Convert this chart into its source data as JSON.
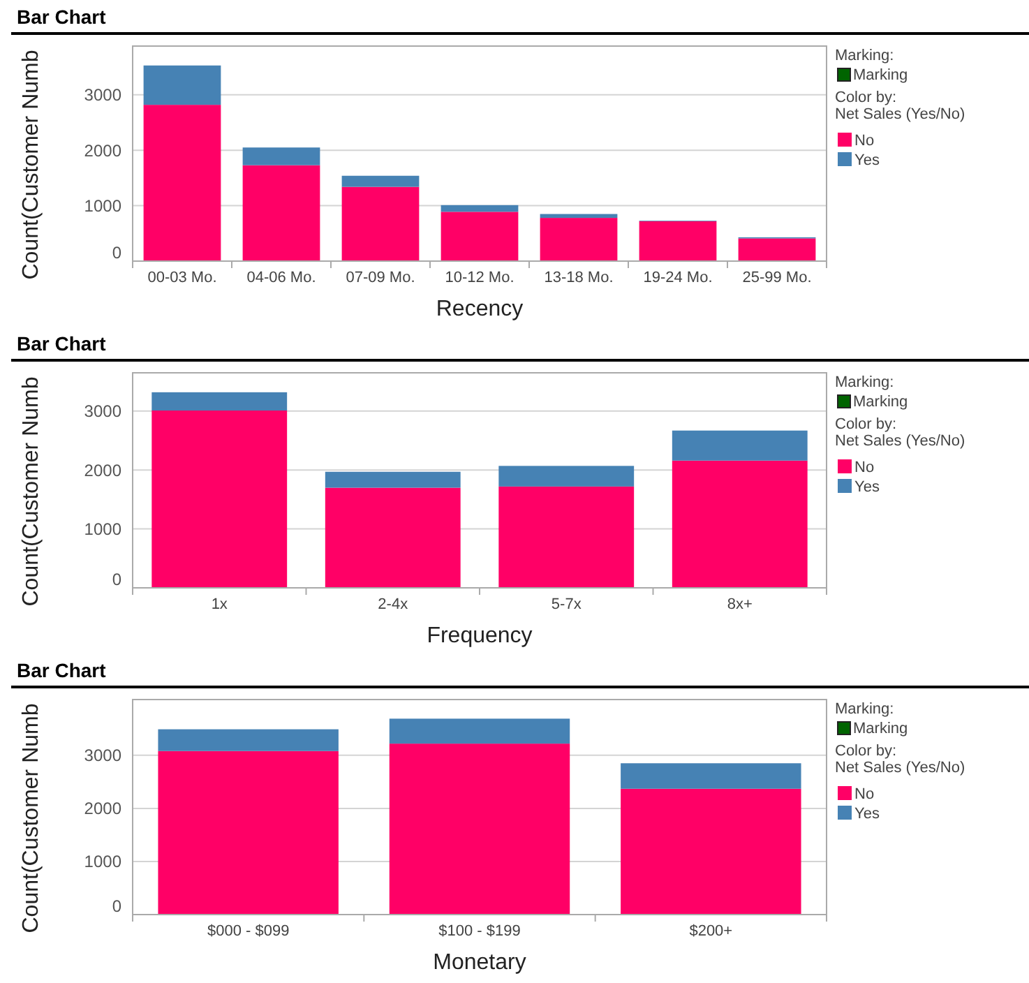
{
  "chart_data": [
    {
      "type": "bar",
      "title": "Bar Chart",
      "xlabel": "Recency",
      "ylabel": "Count(Customer Numb",
      "legend_title": "Net Sales (Yes/No)",
      "annotations": [
        "Marking:",
        "Marking",
        "Color by:"
      ],
      "categories": [
        "00-03 Mo.",
        "04-06 Mo.",
        "07-09 Mo.",
        "10-12 Mo.",
        "13-18 Mo.",
        "19-24 Mo.",
        "25-99 Mo."
      ],
      "stacked": true,
      "ylim": [
        0,
        3880
      ],
      "yticks": [
        0,
        1000,
        2000,
        3000
      ],
      "grid": "y",
      "legend": "right",
      "series": [
        {
          "name": "No",
          "color": "#ff0066",
          "values": [
            2820,
            1730,
            1340,
            890,
            780,
            720,
            410
          ]
        },
        {
          "name": "Yes",
          "color": "#4682b4",
          "values": [
            710,
            320,
            200,
            120,
            70,
            10,
            20
          ]
        }
      ]
    },
    {
      "type": "bar",
      "title": "Bar Chart",
      "xlabel": "Frequency",
      "ylabel": "Count(Customer Numb",
      "legend_title": "Net Sales (Yes/No)",
      "annotations": [
        "Marking:",
        "Marking",
        "Color by:"
      ],
      "categories": [
        "1x",
        "2-4x",
        "5-7x",
        "8x+"
      ],
      "stacked": true,
      "ylim": [
        0,
        3650
      ],
      "yticks": [
        0,
        1000,
        2000,
        3000
      ],
      "grid": "y",
      "legend": "right",
      "series": [
        {
          "name": "No",
          "color": "#ff0066",
          "values": [
            3010,
            1700,
            1720,
            2160
          ]
        },
        {
          "name": "Yes",
          "color": "#4682b4",
          "values": [
            310,
            270,
            350,
            510
          ]
        }
      ]
    },
    {
      "type": "bar",
      "title": "Bar Chart",
      "xlabel": "Monetary",
      "ylabel": "Count(Customer Numb",
      "legend_title": "Net Sales (Yes/No)",
      "annotations": [
        "Marking:",
        "Marking",
        "Color by:"
      ],
      "categories": [
        "$000 - $099",
        "$100 - $199",
        "$200+"
      ],
      "stacked": true,
      "ylim": [
        0,
        4050
      ],
      "yticks": [
        0,
        1000,
        2000,
        3000
      ],
      "grid": "y",
      "legend": "right",
      "series": [
        {
          "name": "No",
          "color": "#ff0066",
          "values": [
            3080,
            3220,
            2370
          ]
        },
        {
          "name": "Yes",
          "color": "#4682b4",
          "values": [
            410,
            470,
            480
          ]
        }
      ]
    }
  ]
}
